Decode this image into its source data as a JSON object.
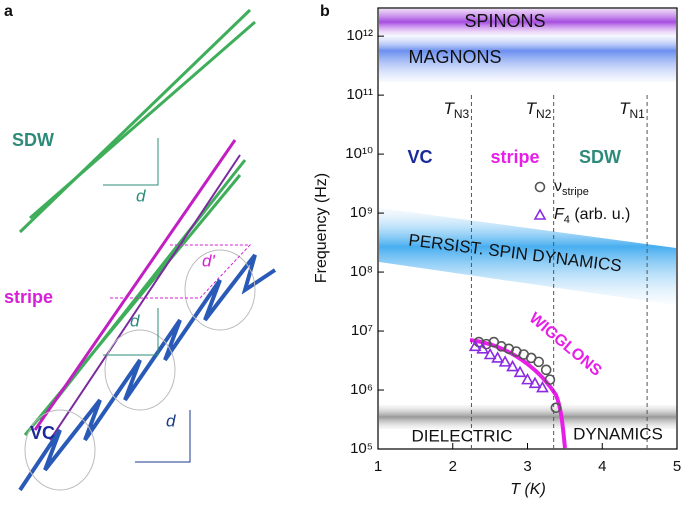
{
  "panel_a": {
    "label": "a",
    "phases": [
      "SDW",
      "stripe",
      "VC"
    ],
    "spacings": [
      "d",
      "d'",
      "d",
      "d"
    ]
  },
  "chart_data": {
    "type": "scatter",
    "panel_label": "b",
    "x_label": "T (K)",
    "y_label": "Frequency (Hz)",
    "xlim": [
      1,
      5
    ],
    "xticks": [
      1,
      2,
      3,
      4,
      5
    ],
    "ylim": [
      100000,
      3000000000000
    ],
    "log_y": true,
    "yticks": [
      {
        "value": 100000,
        "label": "10⁵"
      },
      {
        "value": 1000000,
        "label": "10⁶"
      },
      {
        "value": 10000000,
        "label": "10⁷"
      },
      {
        "value": 100000000,
        "label": "10⁸"
      },
      {
        "value": 1000000000,
        "label": "10⁹"
      },
      {
        "value": 10000000000,
        "label": "10¹⁰"
      },
      {
        "value": 100000000000,
        "label": "10¹¹"
      },
      {
        "value": 1000000000000,
        "label": "10¹²"
      }
    ],
    "transitions": [
      {
        "symbol": "T",
        "subscript": "N3",
        "x": 2.25
      },
      {
        "symbol": "T",
        "subscript": "N2",
        "x": 3.35
      },
      {
        "symbol": "T",
        "subscript": "N1",
        "x": 4.6
      }
    ],
    "phase_labels": [
      "VC",
      "stripe",
      "SDW"
    ],
    "annotations": [
      "SPINONS",
      "MAGNONS",
      "PERSIST. SPIN DYNAMICS",
      "WIGGLONS",
      "DIELECTRIC",
      "DYNAMICS"
    ],
    "series": [
      {
        "symbol": "ν",
        "subscript": "stripe",
        "marker": "circle",
        "color": "#555555",
        "x": [
          2.35,
          2.45,
          2.55,
          2.65,
          2.75,
          2.85,
          2.95,
          3.05,
          3.15,
          3.25,
          3.3,
          3.38
        ],
        "values": [
          6500000,
          6000000,
          6500000,
          5500000,
          5000000,
          4500000,
          4000000,
          3500000,
          3000000,
          2200000,
          1500000,
          500000
        ]
      },
      {
        "symbol": "F",
        "subscript": "4",
        "suffix": " (arb. u.)",
        "marker": "triangle",
        "color": "#8a2be2",
        "x": [
          2.3,
          2.4,
          2.5,
          2.6,
          2.7,
          2.8,
          2.9,
          3.0,
          3.1,
          3.2
        ],
        "values": [
          5500000,
          5000000,
          4000000,
          3500000,
          3000000,
          2500000,
          2000000,
          1500000,
          1300000,
          1100000
        ]
      }
    ]
  }
}
